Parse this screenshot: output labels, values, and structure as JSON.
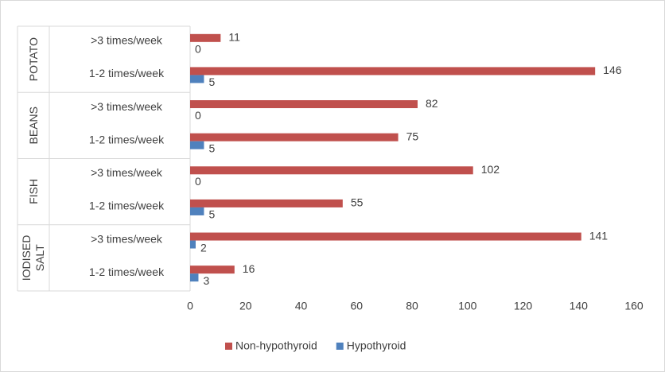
{
  "chart_data": {
    "type": "bar",
    "orientation": "horizontal",
    "groups": [
      {
        "label": "POTATO",
        "categories": [
          ">3 times/week",
          "1-2 times/week"
        ]
      },
      {
        "label": "BEANS",
        "categories": [
          ">3 times/week",
          "1-2 times/week"
        ]
      },
      {
        "label": "FISH",
        "categories": [
          ">3 times/week",
          "1-2 times/week"
        ]
      },
      {
        "label": "IODISED SALT",
        "categories": [
          ">3 times/week",
          "1-2 times/week"
        ]
      }
    ],
    "series": [
      {
        "name": "Non-hypothyroid",
        "color": "#c0504d",
        "values": [
          11,
          146,
          82,
          75,
          102,
          55,
          141,
          16
        ]
      },
      {
        "name": "Hypothyroid",
        "color": "#4f81bd",
        "values": [
          0,
          5,
          0,
          5,
          0,
          5,
          2,
          3
        ]
      }
    ],
    "xlim": [
      0,
      160
    ],
    "xticks": [
      0,
      20,
      40,
      60,
      80,
      100,
      120,
      140,
      160
    ],
    "grid": false,
    "legend": "bottom"
  }
}
